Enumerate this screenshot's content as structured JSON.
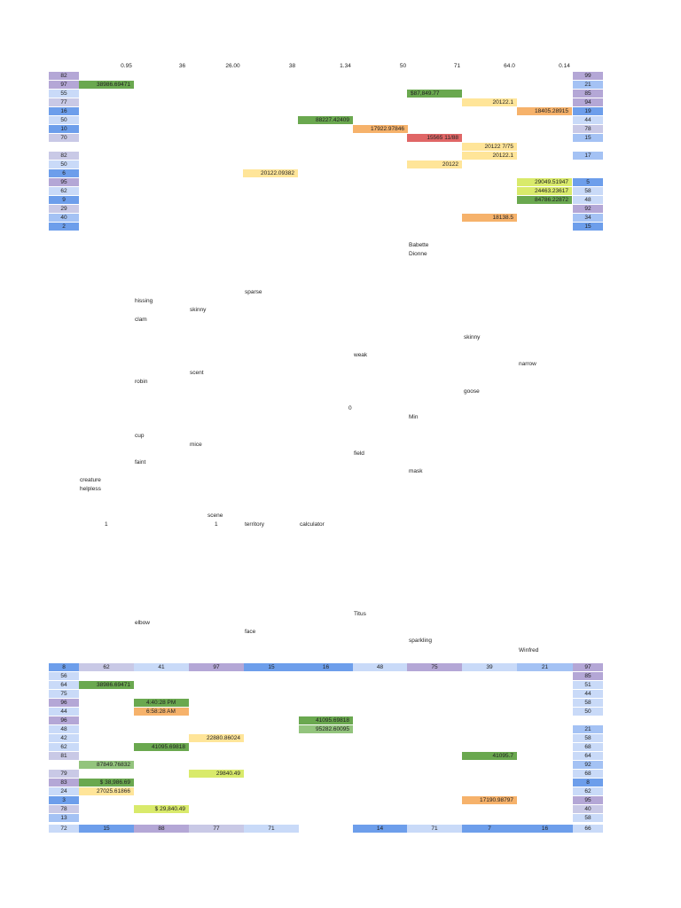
{
  "colors": {
    "purple": "#b4a7d6",
    "lavender": "#c9c9e6",
    "blue": "#6d9eeb",
    "lightblue": "#a4c2f4",
    "paleblue": "#c9daf8",
    "green": "#6aa84f",
    "lightgreen": "#93c47d",
    "yellow": "#ffe599",
    "orange": "#f6b26b",
    "red": "#e06666",
    "olive": "#d9ea6b"
  },
  "top_header": [
    "0.95",
    "36",
    "26.00",
    "38",
    "1.34",
    "50",
    "71",
    "64.0",
    "0.14"
  ],
  "top_left_col": [
    "82",
    "97",
    "55",
    "77",
    "16",
    "50",
    "10",
    "70",
    "",
    "82",
    "50",
    "6",
    "95",
    "62",
    "9",
    "29",
    "40",
    "2"
  ],
  "top_right_col": [
    "99",
    "21",
    "85",
    "94",
    "19",
    "44",
    "78",
    "15",
    "",
    "17",
    "",
    "",
    "5",
    "58",
    "48",
    "92",
    "34",
    "15"
  ],
  "top_values": [
    {
      "text": "38986.69471",
      "color": "green"
    },
    {
      "text": "$87,849.77",
      "color": "green"
    },
    {
      "text": "20122.1",
      "color": "yellow"
    },
    {
      "text": "18405.28915",
      "color": "orange"
    },
    {
      "text": "88227.42409",
      "color": "green"
    },
    {
      "text": "17922.97846",
      "color": "orange"
    },
    {
      "text": "15565 11/88",
      "color": "red"
    },
    {
      "text": "20122   7/75",
      "color": "yellow"
    },
    {
      "text": "20122.1",
      "color": "yellow"
    },
    {
      "text": "20122",
      "color": "yellow"
    },
    {
      "text": "20122.09382",
      "color": "yellow"
    },
    {
      "text": "29049.51947",
      "color": "olive"
    },
    {
      "text": "24463.23617",
      "color": "olive"
    },
    {
      "text": "84786.22872",
      "color": "green"
    },
    {
      "text": "18138.5",
      "color": "orange"
    }
  ],
  "words": [
    "Babette",
    "Dionne",
    "sparse",
    "hissing",
    "skinny",
    "clam",
    "skinny",
    "weak",
    "narrow",
    "scent",
    "robin",
    "goose",
    "0",
    "Min",
    "cup",
    "mice",
    "field",
    "faint",
    "mask",
    "creature",
    "helpless",
    "scene",
    "1",
    "1",
    "territory",
    "calculator",
    "Titus",
    "elbow",
    "face",
    "sparkling",
    "Winfred"
  ],
  "bottom_header": [
    "8",
    "62",
    "41",
    "97",
    "15",
    "16",
    "48",
    "75",
    "39",
    "21",
    "97"
  ],
  "bottom_left_col": [
    "56",
    "64",
    "75",
    "96",
    "44",
    "96",
    "48",
    "42",
    "62",
    "81",
    "",
    "79",
    "83",
    "24",
    "3",
    "78",
    "13",
    "72"
  ],
  "bottom_right_col": [
    "85",
    "51",
    "44",
    "58",
    "50",
    "",
    "21",
    "58",
    "68",
    "64",
    "92",
    "68",
    "8",
    "62",
    "95",
    "40",
    "58",
    "66"
  ],
  "bottom_values": [
    {
      "text": "38986.69471",
      "color": "green"
    },
    {
      "text": "4:40:28 PM",
      "color": "green"
    },
    {
      "text": "6:58:28 AM",
      "color": "orange"
    },
    {
      "text": "41095.69818",
      "color": "green"
    },
    {
      "text": "95282.60095",
      "color": "lightgreen"
    },
    {
      "text": "22880.86024",
      "color": "yellow"
    },
    {
      "text": "41095.69818",
      "color": "green"
    },
    {
      "text": "41095.7",
      "color": "green"
    },
    {
      "text": "87849.76832",
      "color": "lightgreen"
    },
    {
      "text": "29840.49",
      "color": "olive"
    },
    {
      "text": "$       38,986.69",
      "color": "green"
    },
    {
      "text": "27025.61866",
      "color": "yellow"
    },
    {
      "text": "17190.98797",
      "color": "orange"
    },
    {
      "text": "$       29,840.49",
      "color": "olive"
    }
  ],
  "bottom_footer": [
    "15",
    "88",
    "77",
    "71",
    "",
    "14",
    "71",
    "7",
    "16"
  ]
}
